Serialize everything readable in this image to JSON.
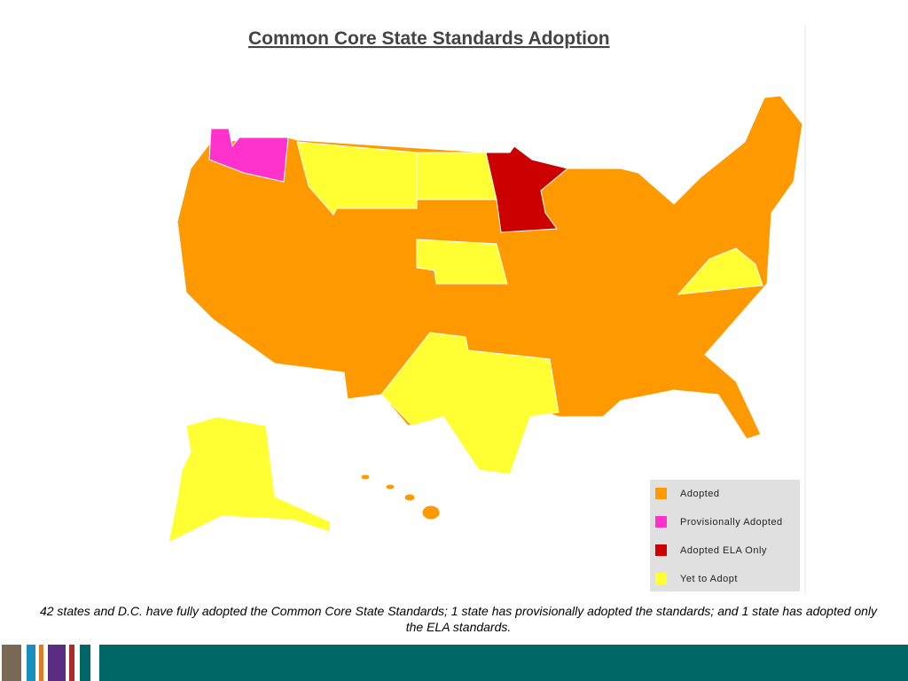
{
  "title": "Common Core State Standards Adoption",
  "legend": [
    {
      "label": "Adopted",
      "color": "#ff9900"
    },
    {
      "label": "Provisionally Adopted",
      "color": "#ff33cc"
    },
    {
      "label": "Adopted ELA Only",
      "color": "#cc0000"
    },
    {
      "label": "Yet to Adopt",
      "color": "#ffff33"
    }
  ],
  "caption": "42 states and D.C. have fully adopted the Common Core State Standards; 1 state has provisionally adopted the standards; and 1 state has adopted only the ELA standards."
}
